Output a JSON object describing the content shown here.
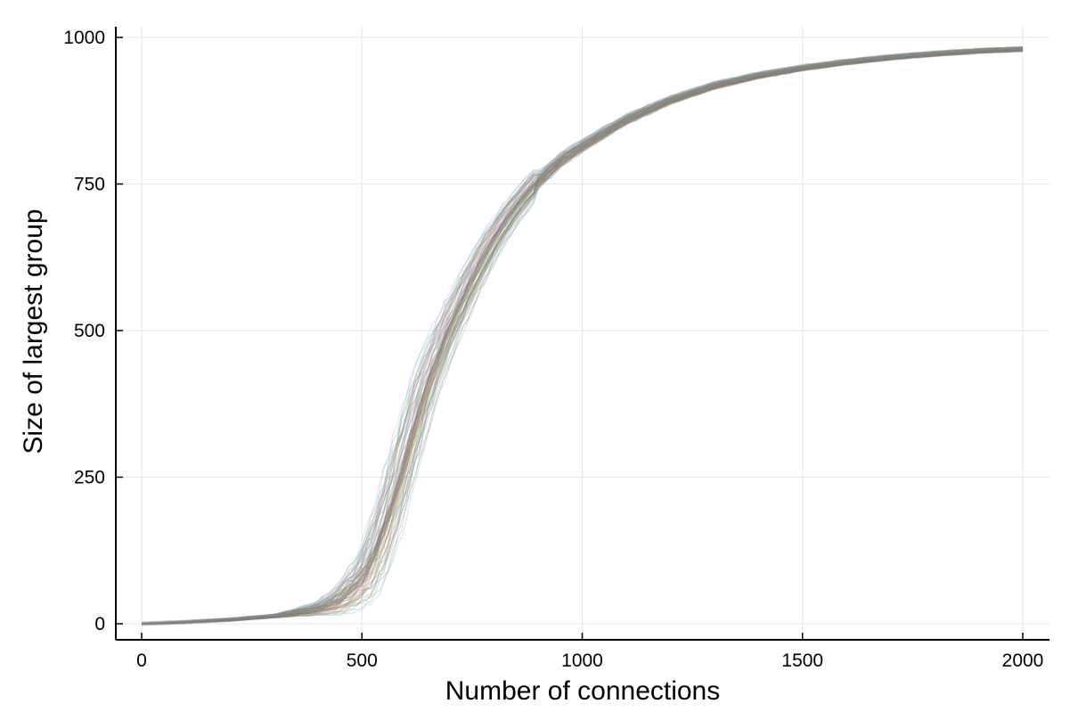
{
  "chart_data": {
    "type": "line",
    "title": "",
    "xlabel": "Number of connections",
    "ylabel": "Size of largest group",
    "xlim": [
      -40,
      2060
    ],
    "ylim": [
      -25,
      1020
    ],
    "xticks": [
      0,
      500,
      1000,
      1500,
      2000
    ],
    "xtick_labels": [
      "0",
      "500",
      "1000",
      "1500",
      "2000"
    ],
    "yticks": [
      0,
      250,
      500,
      750,
      1000
    ],
    "ytick_labels": [
      "0",
      "250",
      "500",
      "750",
      "1000"
    ],
    "grid": true,
    "legend": "none",
    "series_style": "many overlapping faint multicolored trajectories converging to a gray band",
    "representative_curve": {
      "x": [
        0,
        100,
        200,
        300,
        400,
        450,
        500,
        525,
        550,
        575,
        600,
        625,
        650,
        700,
        750,
        800,
        850,
        900,
        950,
        1000,
        1100,
        1200,
        1300,
        1400,
        1500,
        1600,
        1700,
        1800,
        1900,
        2000
      ],
      "y": [
        0,
        3,
        7,
        13,
        25,
        40,
        75,
        110,
        160,
        220,
        285,
        350,
        410,
        505,
        585,
        655,
        710,
        755,
        790,
        815,
        860,
        893,
        918,
        935,
        948,
        958,
        966,
        972,
        977,
        980
      ]
    },
    "band_halfwidth": {
      "x": [
        0,
        300,
        400,
        450,
        500,
        550,
        600,
        650,
        700,
        800,
        900,
        1000,
        1200,
        1500,
        2000
      ],
      "w": [
        1,
        3,
        10,
        22,
        40,
        60,
        60,
        45,
        30,
        18,
        13,
        10,
        7,
        5,
        4
      ]
    },
    "line_colors": [
      "#4a90c8",
      "#e07b39",
      "#5aa05a",
      "#c85a5a",
      "#8f6fbf",
      "#8c6a55",
      "#d38fbf",
      "#808080",
      "#b5b840",
      "#3fbfcc"
    ]
  }
}
